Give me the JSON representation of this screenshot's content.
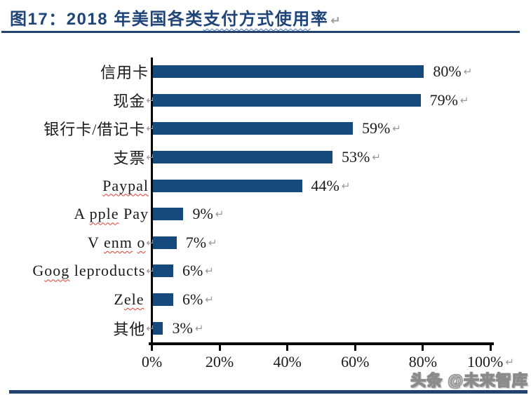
{
  "figure": {
    "title_pre": "图17：2018 年美国各类",
    "title_squiggle": "支付方式使用",
    "title_post": "率",
    "return_mark": "↵"
  },
  "chart_data": {
    "type": "bar",
    "orientation": "horizontal",
    "title": "2018 年美国各类支付方式使用率",
    "xlabel": "",
    "ylabel": "",
    "xlim": [
      0,
      100
    ],
    "grid": false,
    "legend": false,
    "bar_color": "#164a7d",
    "categories": [
      "信用卡",
      "现金",
      "银行卡/借记卡",
      "支票",
      "Paypal",
      "A pple Pay",
      "V enm o",
      "Goog leproducts",
      "Zele",
      "其他"
    ],
    "values": [
      80,
      79,
      59,
      53,
      44,
      9,
      7,
      6,
      6,
      3
    ],
    "x_ticks": [
      {
        "label": "0%",
        "value": 0,
        "return_mark": false
      },
      {
        "label": "20%",
        "value": 20,
        "return_mark": false
      },
      {
        "label": "40%",
        "value": 40,
        "return_mark": false
      },
      {
        "label": "60%",
        "value": 60,
        "return_mark": false
      },
      {
        "label": "80%",
        "value": 80,
        "return_mark": false
      },
      {
        "label": "100%",
        "value": 100,
        "return_mark": true
      }
    ],
    "rows": [
      {
        "label_parts": [
          {
            "text": "信用卡",
            "misspell": false
          }
        ],
        "label_return": false,
        "value": 80,
        "value_label": "80%"
      },
      {
        "label_parts": [
          {
            "text": "现金",
            "misspell": false
          }
        ],
        "label_return": true,
        "value": 79,
        "value_label": "79%"
      },
      {
        "label_parts": [
          {
            "text": "银行卡/借记卡",
            "misspell": false
          }
        ],
        "label_return": true,
        "value": 59,
        "value_label": "59%"
      },
      {
        "label_parts": [
          {
            "text": "支票",
            "misspell": false
          }
        ],
        "label_return": true,
        "value": 53,
        "value_label": "53%"
      },
      {
        "label_parts": [
          {
            "text": "Paypal",
            "misspell": true
          }
        ],
        "label_return": false,
        "value": 44,
        "value_label": "44%"
      },
      {
        "label_parts": [
          {
            "text": "A ",
            "misspell": false
          },
          {
            "text": "pple",
            "misspell": true
          },
          {
            "text": " Pay",
            "misspell": false
          }
        ],
        "label_return": false,
        "value": 9,
        "value_label": "9%"
      },
      {
        "label_parts": [
          {
            "text": "V ",
            "misspell": false
          },
          {
            "text": "enm",
            "misspell": true
          },
          {
            "text": " ",
            "misspell": false
          },
          {
            "text": "o",
            "misspell": true
          }
        ],
        "label_return": true,
        "value": 7,
        "value_label": "7%"
      },
      {
        "label_parts": [
          {
            "text": "G",
            "misspell": false
          },
          {
            "text": "oog",
            "misspell": true
          },
          {
            "text": " leproducts",
            "misspell": false
          }
        ],
        "label_return": true,
        "value": 6,
        "value_label": "6%"
      },
      {
        "label_parts": [
          {
            "text": "Z",
            "misspell": false
          },
          {
            "text": "ele",
            "misspell": true
          },
          {
            "text": " ",
            "misspell": false
          }
        ],
        "label_return": false,
        "value": 6,
        "value_label": "6%"
      },
      {
        "label_parts": [
          {
            "text": "其他",
            "misspell": false
          }
        ],
        "label_return": true,
        "value": 3,
        "value_label": "3%"
      }
    ]
  },
  "watermark": "头条 @未来智库",
  "colors": {
    "bar": "#164a7d",
    "title": "#1f4478",
    "rule": "#24426e",
    "axis": "#000000",
    "return_mark": "#9a9a9a",
    "misspell_underline": "#e03c31",
    "grammar_underline": "#4472c4"
  }
}
